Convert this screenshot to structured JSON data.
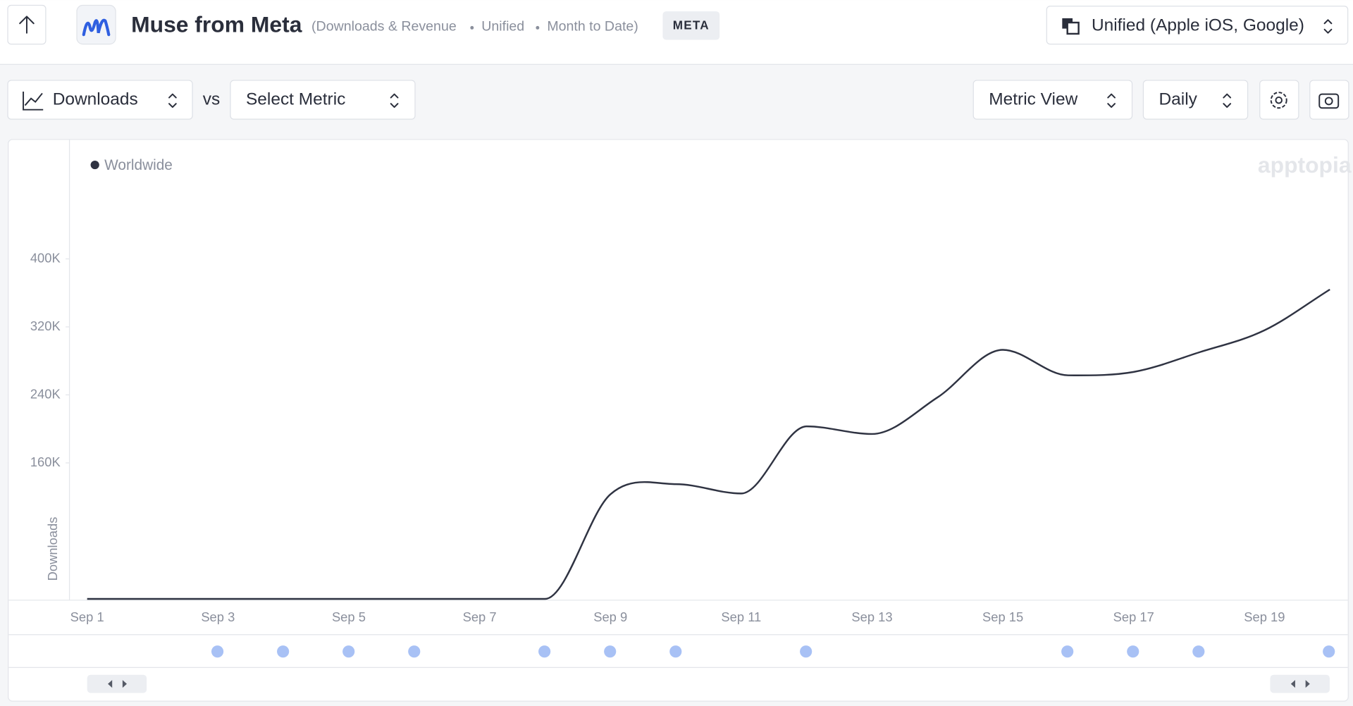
{
  "header": {
    "title": "Muse from Meta",
    "subtitle": [
      "(Downloads & Revenue",
      "Unified",
      "Month to Date)"
    ],
    "badge": "META",
    "platform": "Unified (Apple iOS, Google)"
  },
  "toolbar": {
    "metric": "Downloads",
    "vs": "vs",
    "second_metric": "Select Metric",
    "view": "Metric View",
    "interval": "Daily"
  },
  "chart_data": {
    "type": "line",
    "y_label": "Downloads",
    "watermark": "apptopia",
    "legend_position": "top-left",
    "categories": [
      "Sep 1",
      null,
      "Sep 3",
      null,
      "Sep 5",
      null,
      "Sep 7",
      null,
      "Sep 9",
      null,
      "Sep 11",
      null,
      "Sep 13",
      null,
      "Sep 15",
      null,
      "Sep 17",
      null,
      "Sep 19",
      null
    ],
    "series": [
      {
        "name": "Worldwide",
        "color": "#2f3342",
        "values": [
          0,
          0,
          0,
          0,
          0,
          0,
          0,
          0,
          123000,
          135000,
          124000,
          203000,
          194000,
          237000,
          293000,
          263000,
          267000,
          290000,
          316000,
          364000
        ]
      }
    ],
    "ylim": [
      0,
      540000
    ],
    "yticks": [
      {
        "value": 160000,
        "label": "160K"
      },
      {
        "value": 240000,
        "label": "240K"
      },
      {
        "value": 320000,
        "label": "320K"
      },
      {
        "value": 400000,
        "label": "400K"
      }
    ]
  }
}
